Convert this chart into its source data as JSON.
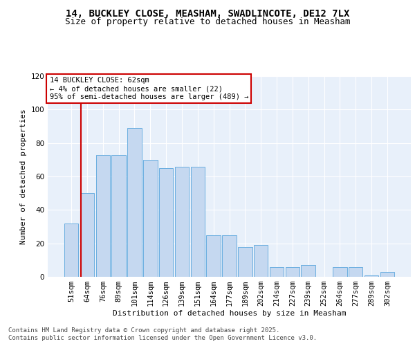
{
  "title": "14, BUCKLEY CLOSE, MEASHAM, SWADLINCOTE, DE12 7LX",
  "subtitle": "Size of property relative to detached houses in Measham",
  "xlabel": "Distribution of detached houses by size in Measham",
  "ylabel": "Number of detached properties",
  "categories": [
    "51sqm",
    "64sqm",
    "76sqm",
    "89sqm",
    "101sqm",
    "114sqm",
    "126sqm",
    "139sqm",
    "151sqm",
    "164sqm",
    "177sqm",
    "189sqm",
    "202sqm",
    "214sqm",
    "227sqm",
    "239sqm",
    "252sqm",
    "264sqm",
    "277sqm",
    "289sqm",
    "302sqm"
  ],
  "bar_heights": [
    32,
    50,
    73,
    73,
    89,
    70,
    65,
    66,
    66,
    25,
    25,
    18,
    19,
    6,
    6,
    7,
    0,
    6,
    6,
    1,
    3
  ],
  "ylim": [
    0,
    120
  ],
  "yticks": [
    0,
    20,
    40,
    60,
    80,
    100,
    120
  ],
  "bar_color": "#c5d8f0",
  "bar_edge_color": "#6aaee0",
  "background_color": "#e8f0fa",
  "grid_color": "#ffffff",
  "vline_color": "#cc0000",
  "vline_x_idx": 0.62,
  "annotation_text": "14 BUCKLEY CLOSE: 62sqm\n← 4% of detached houses are smaller (22)\n95% of semi-detached houses are larger (489) →",
  "annotation_box_color": "#cc0000",
  "footer_line1": "Contains HM Land Registry data © Crown copyright and database right 2025.",
  "footer_line2": "Contains public sector information licensed under the Open Government Licence v3.0.",
  "title_fontsize": 10,
  "subtitle_fontsize": 9,
  "axis_label_fontsize": 8,
  "tick_fontsize": 7.5,
  "annotation_fontsize": 7.5,
  "footer_fontsize": 6.5
}
